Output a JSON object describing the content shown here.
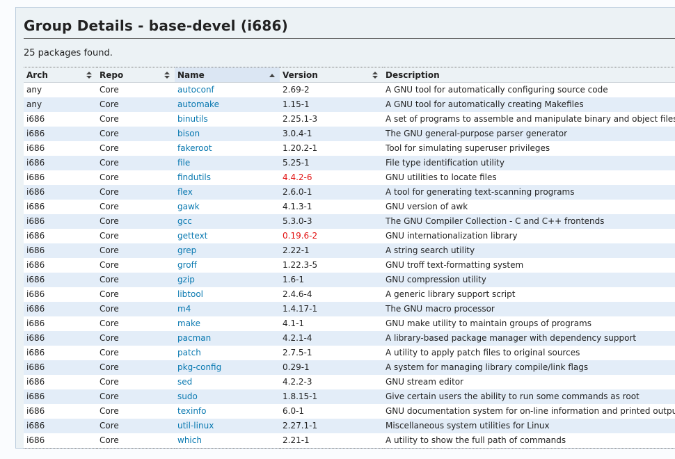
{
  "page": {
    "title": "Group Details - base-devel (i686)",
    "result_count": "25 packages found."
  },
  "table": {
    "columns": [
      {
        "label": "Arch",
        "sort": "both"
      },
      {
        "label": "Repo",
        "sort": "both"
      },
      {
        "label": "Name",
        "sort": "asc"
      },
      {
        "label": "Version",
        "sort": "both"
      },
      {
        "label": "Description",
        "sort": "none"
      }
    ],
    "rows": [
      {
        "arch": "any",
        "repo": "Core",
        "name": "autoconf",
        "version": "2.69-2",
        "flagged": false,
        "description": "A GNU tool for automatically configuring source code"
      },
      {
        "arch": "any",
        "repo": "Core",
        "name": "automake",
        "version": "1.15-1",
        "flagged": false,
        "description": "A GNU tool for automatically creating Makefiles"
      },
      {
        "arch": "i686",
        "repo": "Core",
        "name": "binutils",
        "version": "2.25.1-3",
        "flagged": false,
        "description": "A set of programs to assemble and manipulate binary and object files"
      },
      {
        "arch": "i686",
        "repo": "Core",
        "name": "bison",
        "version": "3.0.4-1",
        "flagged": false,
        "description": "The GNU general-purpose parser generator"
      },
      {
        "arch": "i686",
        "repo": "Core",
        "name": "fakeroot",
        "version": "1.20.2-1",
        "flagged": false,
        "description": "Tool for simulating superuser privileges"
      },
      {
        "arch": "i686",
        "repo": "Core",
        "name": "file",
        "version": "5.25-1",
        "flagged": false,
        "description": "File type identification utility"
      },
      {
        "arch": "i686",
        "repo": "Core",
        "name": "findutils",
        "version": "4.4.2-6",
        "flagged": true,
        "description": "GNU utilities to locate files"
      },
      {
        "arch": "i686",
        "repo": "Core",
        "name": "flex",
        "version": "2.6.0-1",
        "flagged": false,
        "description": "A tool for generating text-scanning programs"
      },
      {
        "arch": "i686",
        "repo": "Core",
        "name": "gawk",
        "version": "4.1.3-1",
        "flagged": false,
        "description": "GNU version of awk"
      },
      {
        "arch": "i686",
        "repo": "Core",
        "name": "gcc",
        "version": "5.3.0-3",
        "flagged": false,
        "description": "The GNU Compiler Collection - C and C++ frontends"
      },
      {
        "arch": "i686",
        "repo": "Core",
        "name": "gettext",
        "version": "0.19.6-2",
        "flagged": true,
        "description": "GNU internationalization library"
      },
      {
        "arch": "i686",
        "repo": "Core",
        "name": "grep",
        "version": "2.22-1",
        "flagged": false,
        "description": "A string search utility"
      },
      {
        "arch": "i686",
        "repo": "Core",
        "name": "groff",
        "version": "1.22.3-5",
        "flagged": false,
        "description": "GNU troff text-formatting system"
      },
      {
        "arch": "i686",
        "repo": "Core",
        "name": "gzip",
        "version": "1.6-1",
        "flagged": false,
        "description": "GNU compression utility"
      },
      {
        "arch": "i686",
        "repo": "Core",
        "name": "libtool",
        "version": "2.4.6-4",
        "flagged": false,
        "description": "A generic library support script"
      },
      {
        "arch": "i686",
        "repo": "Core",
        "name": "m4",
        "version": "1.4.17-1",
        "flagged": false,
        "description": "The GNU macro processor"
      },
      {
        "arch": "i686",
        "repo": "Core",
        "name": "make",
        "version": "4.1-1",
        "flagged": false,
        "description": "GNU make utility to maintain groups of programs"
      },
      {
        "arch": "i686",
        "repo": "Core",
        "name": "pacman",
        "version": "4.2.1-4",
        "flagged": false,
        "description": "A library-based package manager with dependency support"
      },
      {
        "arch": "i686",
        "repo": "Core",
        "name": "patch",
        "version": "2.7.5-1",
        "flagged": false,
        "description": "A utility to apply patch files to original sources"
      },
      {
        "arch": "i686",
        "repo": "Core",
        "name": "pkg-config",
        "version": "0.29-1",
        "flagged": false,
        "description": "A system for managing library compile/link flags"
      },
      {
        "arch": "i686",
        "repo": "Core",
        "name": "sed",
        "version": "4.2.2-3",
        "flagged": false,
        "description": "GNU stream editor"
      },
      {
        "arch": "i686",
        "repo": "Core",
        "name": "sudo",
        "version": "1.8.15-1",
        "flagged": false,
        "description": "Give certain users the ability to run some commands as root"
      },
      {
        "arch": "i686",
        "repo": "Core",
        "name": "texinfo",
        "version": "6.0-1",
        "flagged": false,
        "description": "GNU documentation system for on-line information and printed output"
      },
      {
        "arch": "i686",
        "repo": "Core",
        "name": "util-linux",
        "version": "2.27.1-1",
        "flagged": false,
        "description": "Miscellaneous system utilities for Linux"
      },
      {
        "arch": "i686",
        "repo": "Core",
        "name": "which",
        "version": "2.21-1",
        "flagged": false,
        "description": "A utility to show the full path of commands"
      }
    ]
  },
  "colors": {
    "link": "#0878b0",
    "flagged_version": "#e21010",
    "row_even_bg": "#e3edf8",
    "box_bg": "#ecf2f5",
    "box_border": "#bbccdd",
    "sorted_header_bg": "#dbe6f3",
    "page_bg": "#fafcfe"
  }
}
